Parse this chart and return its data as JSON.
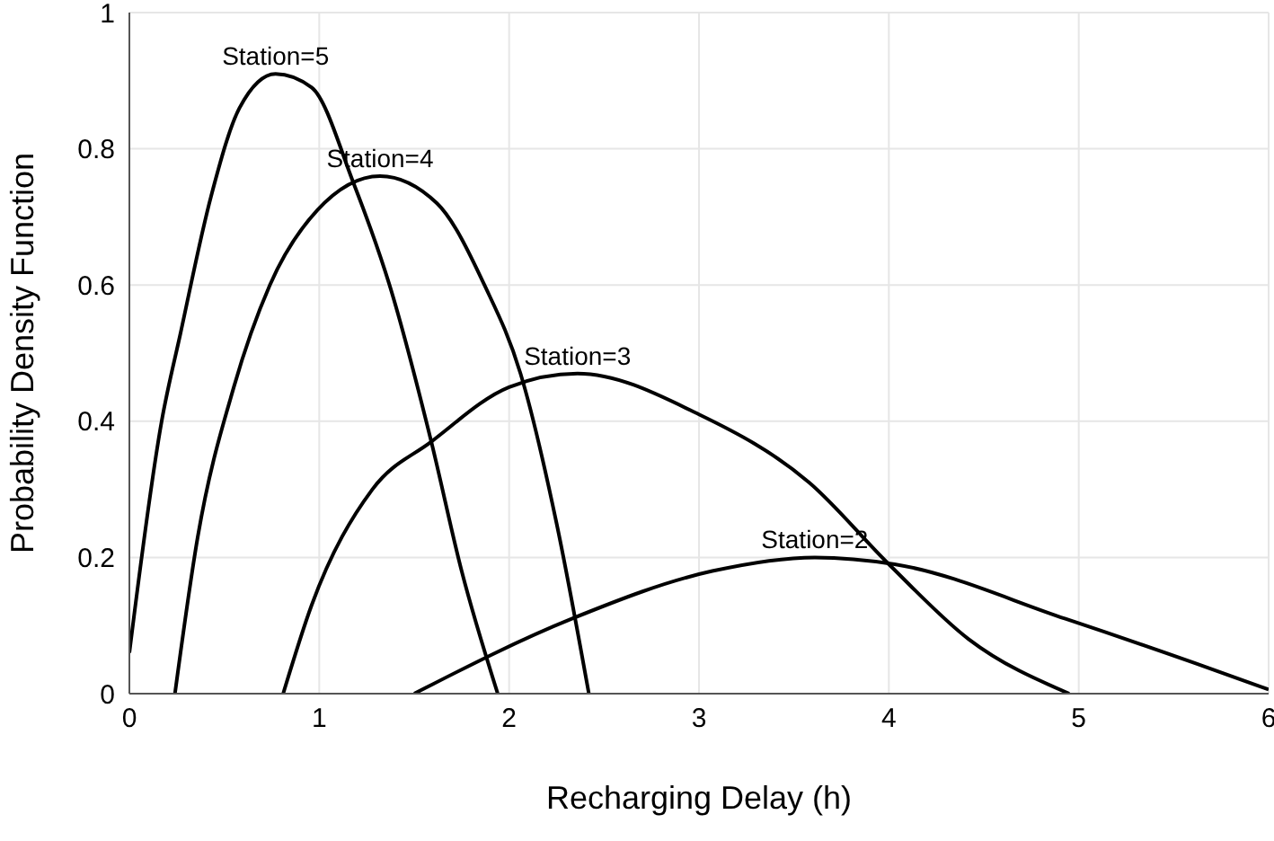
{
  "chart_data": {
    "type": "line",
    "xlabel": "Recharging Delay (h)",
    "ylabel": "Probability Density Function",
    "xlim": [
      0,
      6
    ],
    "xticks": [
      0,
      1,
      2,
      3,
      4,
      5,
      6
    ],
    "ylim": [
      0,
      1
    ],
    "yticks": [
      0,
      0.2,
      0.4,
      0.6,
      0.8,
      1
    ],
    "grid": true,
    "legend": false,
    "marker": "none",
    "line_style": "solid",
    "series": [
      {
        "name": "Station=5",
        "color": "#000000",
        "x": [
          0,
          0.17,
          0.27,
          0.43,
          0.58,
          0.77,
          0.96,
          1.18,
          1.37,
          1.59,
          1.75,
          1.94
        ],
        "values": [
          0.06,
          0.4,
          0.53,
          0.73,
          0.86,
          0.91,
          0.89,
          0.75,
          0.6,
          0.37,
          0.18,
          0
        ]
      },
      {
        "name": "Station=4",
        "color": "#000000",
        "x": [
          0.24,
          0.36,
          0.55,
          0.74,
          0.99,
          1.32,
          1.62,
          1.87,
          2.06,
          2.25,
          2.42
        ],
        "values": [
          0,
          0.23,
          0.45,
          0.6,
          0.71,
          0.76,
          0.72,
          0.6,
          0.47,
          0.25,
          0
        ]
      },
      {
        "name": "Station=3",
        "color": "#000000",
        "x": [
          0.81,
          0.96,
          1.28,
          1.59,
          2.0,
          2.36,
          3.0,
          3.58,
          4.0,
          4.42,
          4.95
        ],
        "values": [
          0,
          0.13,
          0.3,
          0.37,
          0.45,
          0.47,
          0.41,
          0.31,
          0.19,
          0.08,
          0
        ]
      },
      {
        "name": "Station=2",
        "color": "#000000",
        "x": [
          1.5,
          2.33,
          3.07,
          3.61,
          4.03,
          4.93,
          5.61,
          6.0
        ],
        "values": [
          0,
          0.11,
          0.18,
          0.2,
          0.19,
          0.11,
          0.045,
          0.006
        ]
      }
    ]
  }
}
